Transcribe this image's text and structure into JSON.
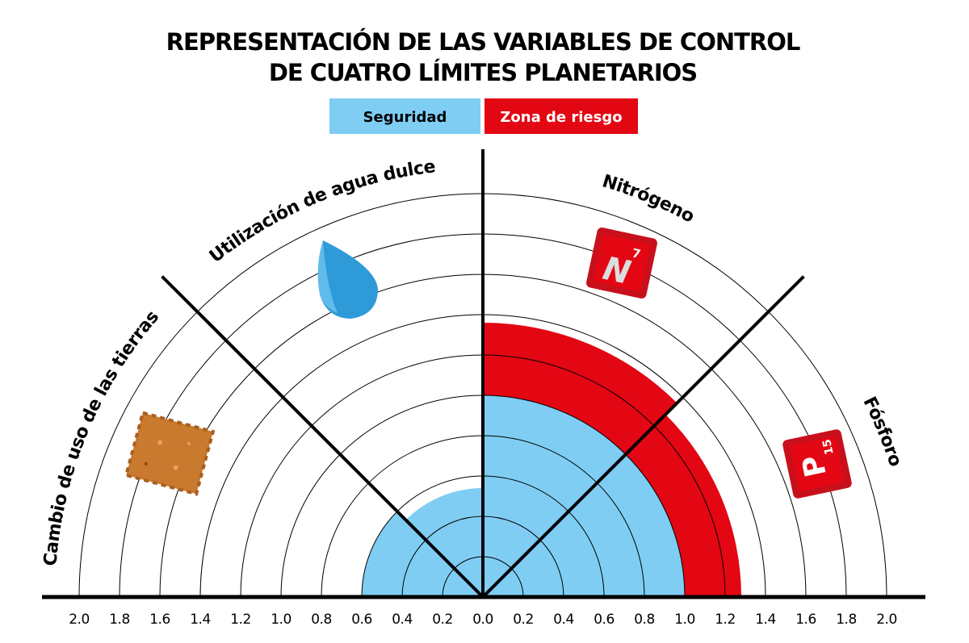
{
  "chart_data": {
    "type": "polar-bar",
    "title": [
      "REPRESENTACIÓN DE LAS VARIABLES DE CONTROL",
      "DE CUATRO LÍMITES PLANETARIOS"
    ],
    "categories": [
      "Cambio de uso de las tierras",
      "Utilización de agua dulce",
      "Nitrógeno",
      "Fósforo"
    ],
    "series": [
      {
        "name": "Seguridad",
        "color": "#7fcdf3",
        "values": [
          0.6,
          0.54,
          1.0,
          1.0
        ]
      },
      {
        "name": "Zona de riesgo",
        "color": "#e30613",
        "values": [
          null,
          null,
          0.36,
          0.28
        ]
      }
    ],
    "xlim": [
      0,
      2
    ],
    "xticks": [
      {
        "value": 0,
        "label": "0.0"
      },
      {
        "value": 0.2,
        "label": "0.2"
      },
      {
        "value": 0.4,
        "label": "0.4"
      },
      {
        "value": 0.6,
        "label": "0.6"
      },
      {
        "value": 0.8,
        "label": "0.8"
      },
      {
        "value": 1,
        "label": "1.0"
      },
      {
        "value": 1.2,
        "label": "1.2"
      },
      {
        "value": 1.4,
        "label": "1.4"
      },
      {
        "value": 1.6,
        "label": "1.6"
      },
      {
        "value": 1.8,
        "label": "1.8"
      },
      {
        "value": 2,
        "label": "2.0"
      }
    ],
    "grid": true,
    "element_tiles": [
      {
        "symbol": "N",
        "number": 7
      },
      {
        "symbol": "P",
        "number": 15
      }
    ]
  }
}
